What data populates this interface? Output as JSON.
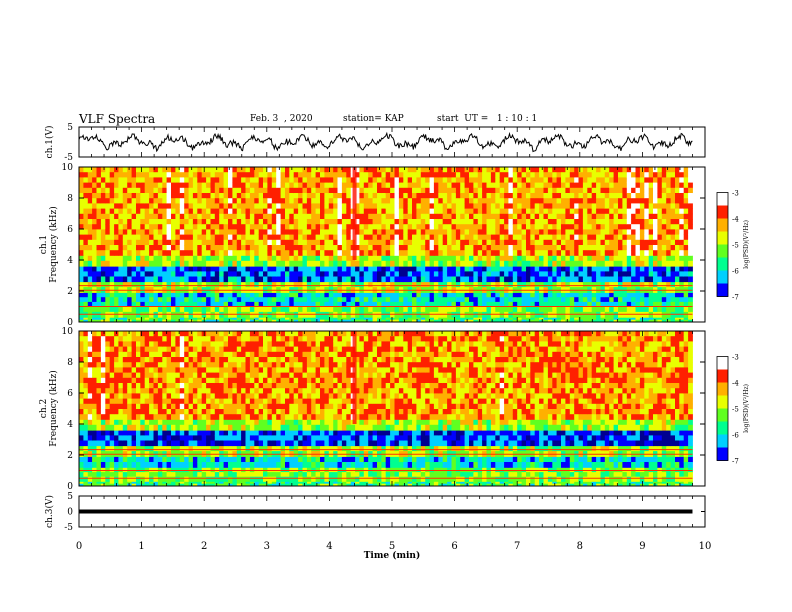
{
  "header": {
    "title": "VLF Spectra",
    "date": "Feb. 3  , 2020",
    "station": "station= KAP",
    "start": "start  UT =   1 : 10 : 1"
  },
  "colors": {
    "spectrum_colormap": [
      "#000080",
      "#0000ff",
      "#00c8ff",
      "#00ff80",
      "#80ff00",
      "#ffff00",
      "#ff0000",
      "#ffffff"
    ],
    "trace": "#000000"
  },
  "chart_data": [
    {
      "type": "line",
      "name": "ch1-waveform",
      "ylabel": "ch.1(V)",
      "yticks": [
        "5",
        "-5"
      ],
      "ylim": [
        -5,
        5
      ],
      "xlim": [
        0,
        9.8
      ],
      "description_values": {
        "mean_V": 0,
        "approx_amplitude_V": 2.5
      }
    },
    {
      "type": "heatmap",
      "name": "ch1-spectrogram",
      "ylabel": "ch.1\nFrequency (kHz)",
      "yticks": [
        "0",
        "2",
        "4",
        "6",
        "8",
        "10"
      ],
      "ylim": [
        0,
        10
      ],
      "xlim": [
        0,
        9.8
      ],
      "colorbar": {
        "label": "log(PSD)(V²/Hz)",
        "ticks": [
          "-3",
          "-4",
          "-5",
          "-6",
          "-7"
        ],
        "range": [
          -7,
          -3
        ]
      },
      "bands_kHz": [
        {
          "from": 0.0,
          "to": 0.3,
          "level": -5.5
        },
        {
          "from": 0.3,
          "to": 1.0,
          "level": -5.2
        },
        {
          "from": 1.0,
          "to": 1.9,
          "level": -6.0
        },
        {
          "from": 1.9,
          "to": 2.6,
          "level": -5.0
        },
        {
          "from": 2.6,
          "to": 3.6,
          "level": -6.6
        },
        {
          "from": 3.6,
          "to": 4.3,
          "level": -5.0
        },
        {
          "from": 4.3,
          "to": 10.0,
          "level": -4.3
        }
      ]
    },
    {
      "type": "heatmap",
      "name": "ch2-spectrogram",
      "ylabel": "ch.2\nFrequency (kHz)",
      "yticks": [
        "0",
        "2",
        "4",
        "6",
        "8",
        "10"
      ],
      "ylim": [
        0,
        10
      ],
      "xlim": [
        0,
        9.8
      ],
      "colorbar": {
        "label": "log(PSD)(V²/Hz)",
        "ticks": [
          "-3",
          "-4",
          "-5",
          "-6",
          "-7"
        ],
        "range": [
          -7,
          -3
        ]
      },
      "bands_kHz": [
        {
          "from": 0.0,
          "to": 0.3,
          "level": -5.5
        },
        {
          "from": 0.3,
          "to": 1.2,
          "level": -5.2
        },
        {
          "from": 1.2,
          "to": 1.9,
          "level": -6.0
        },
        {
          "from": 1.9,
          "to": 2.6,
          "level": -5.0
        },
        {
          "from": 2.6,
          "to": 3.6,
          "level": -6.7
        },
        {
          "from": 3.6,
          "to": 4.3,
          "level": -5.0
        },
        {
          "from": 4.3,
          "to": 10.0,
          "level": -4.2
        }
      ]
    },
    {
      "type": "line",
      "name": "ch3-waveform",
      "ylabel": "ch.3(V)",
      "yticks": [
        "5",
        "0",
        "-5"
      ],
      "ylim": [
        -5,
        5
      ],
      "xlim": [
        0,
        9.8
      ],
      "description_values": {
        "constant_V": 0
      }
    }
  ],
  "xaxis": {
    "label": "Time (min)",
    "ticks": [
      "0",
      "1",
      "2",
      "3",
      "4",
      "5",
      "6",
      "7",
      "8",
      "9",
      "10"
    ],
    "range": [
      0,
      10
    ]
  }
}
